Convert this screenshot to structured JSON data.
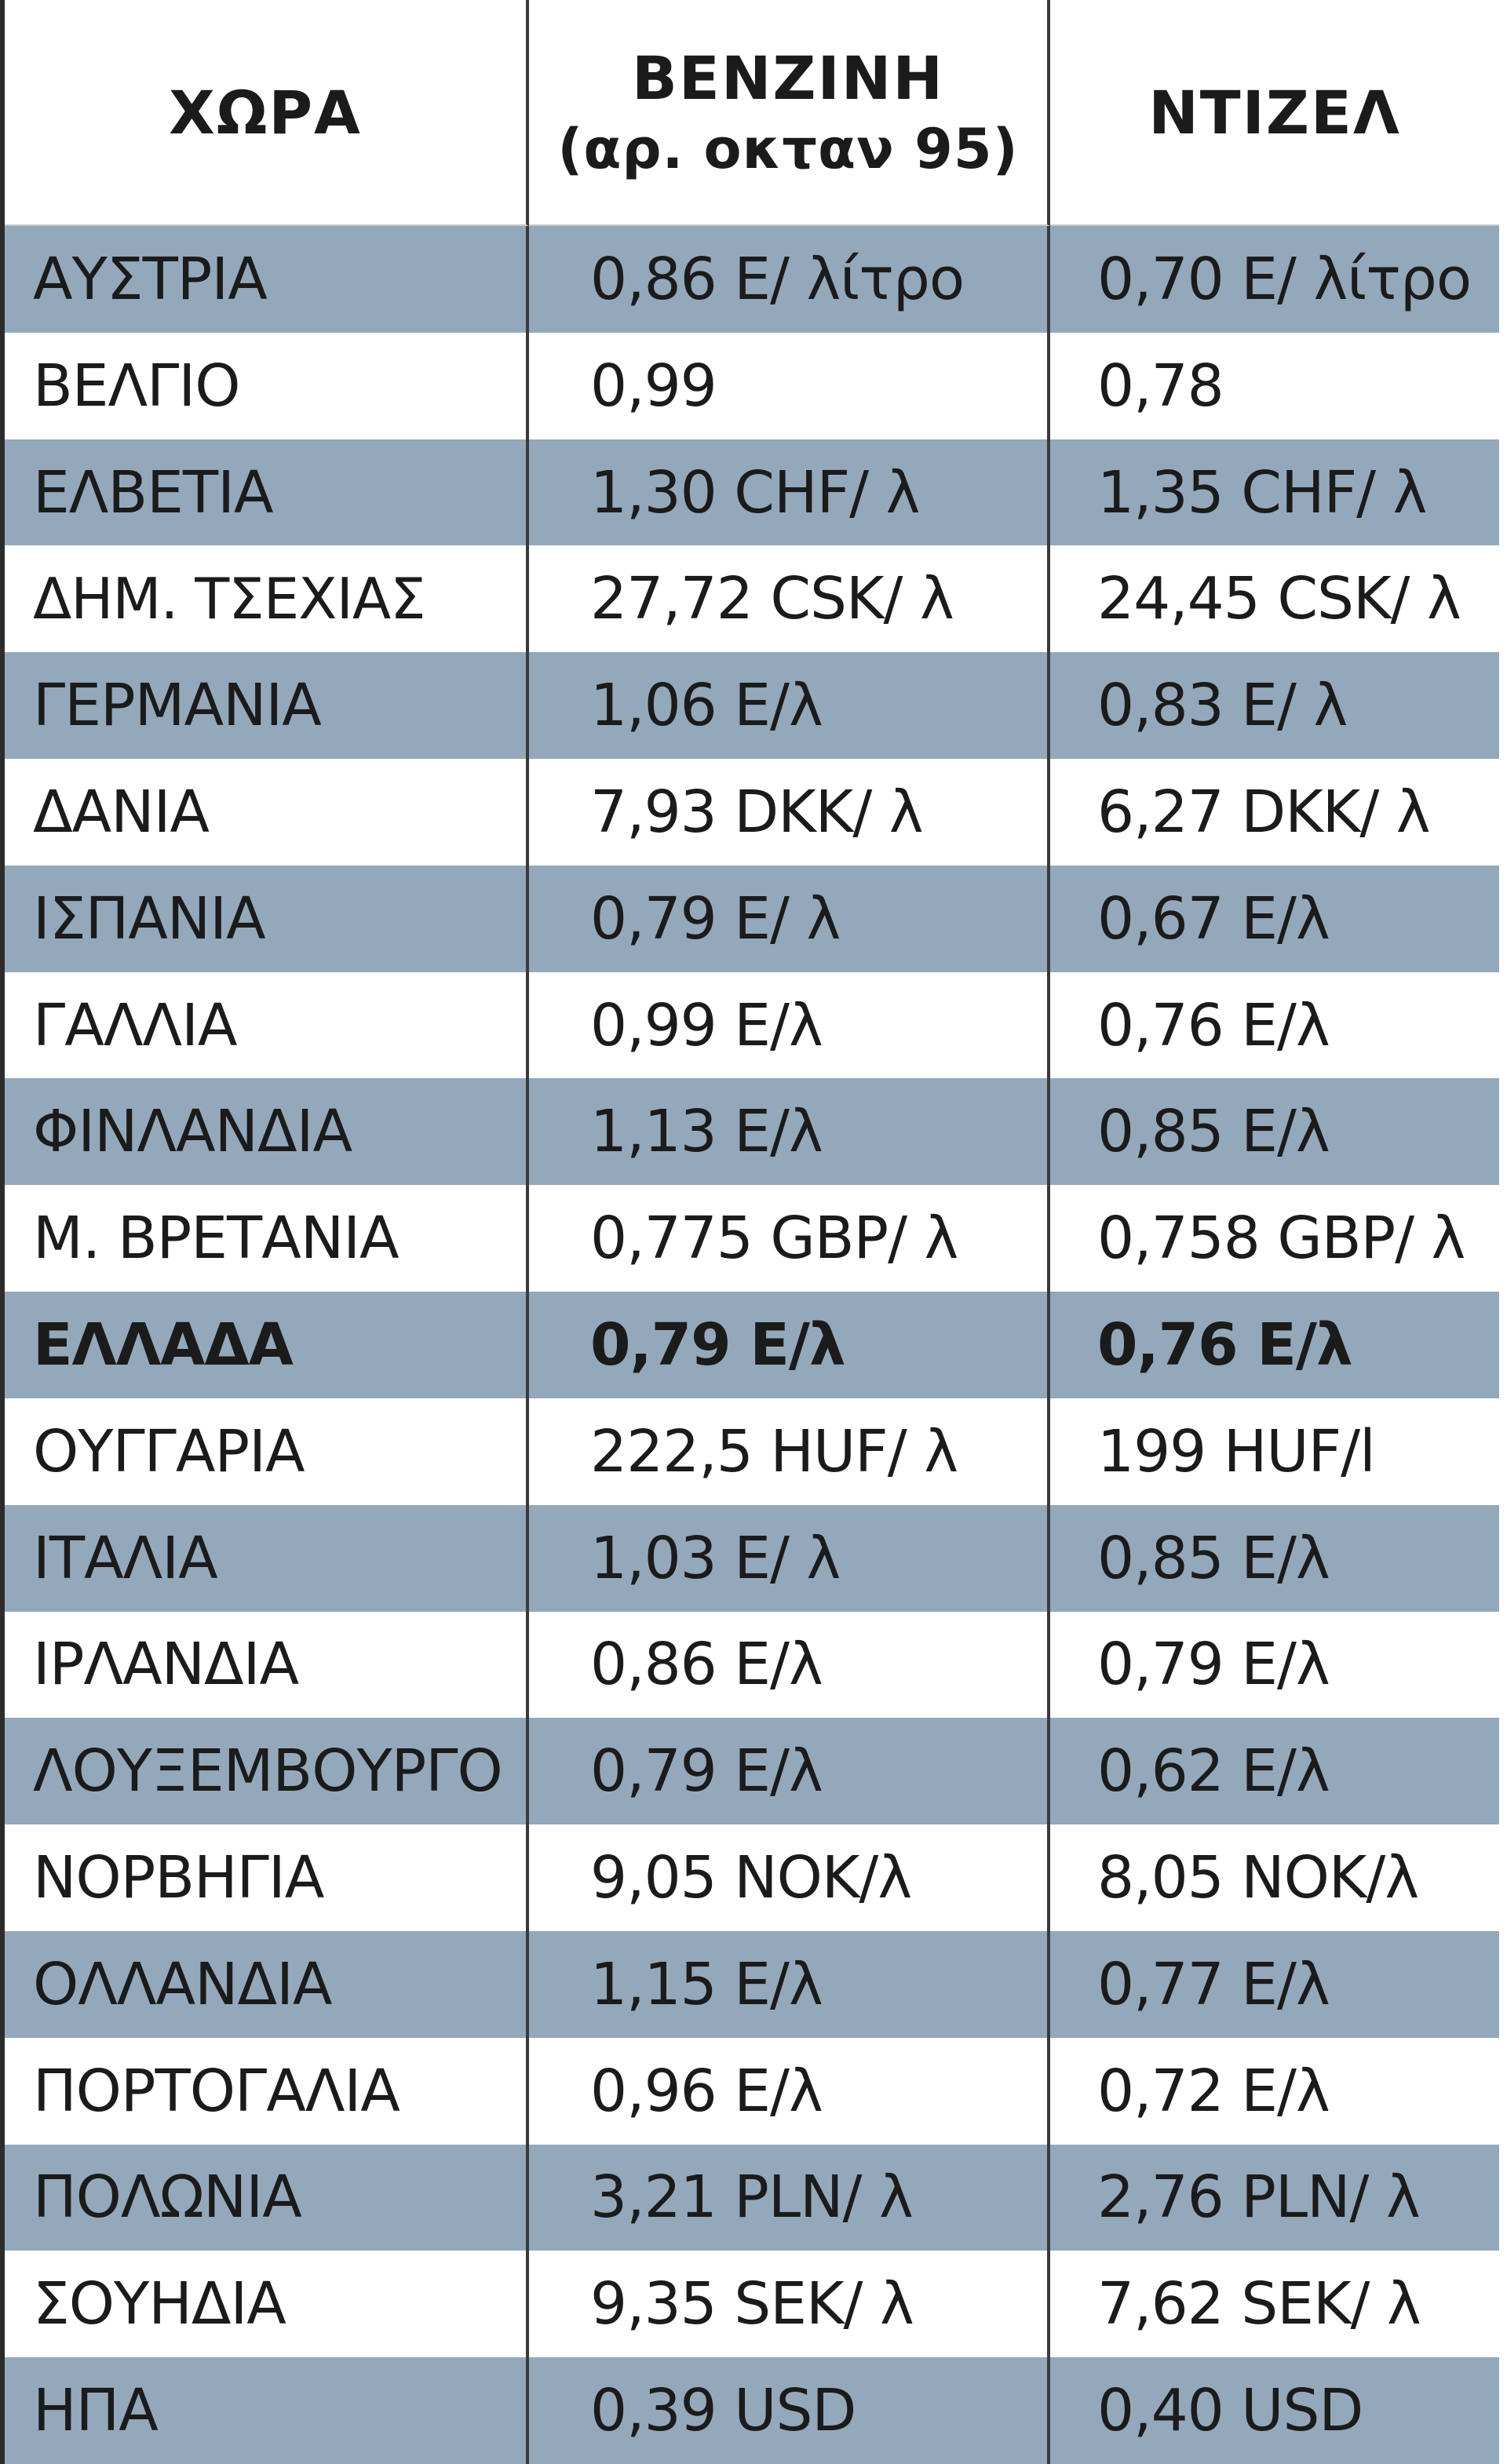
{
  "header": {
    "country": "ΧΩΡΑ",
    "petrol_line1": "ΒΕΝΖΙΝΗ",
    "petrol_line2": "(αρ. οκταν 95)",
    "diesel": "ΝΤΙΖΕΛ"
  },
  "rows": [
    {
      "country": "ΑΥΣΤΡΙΑ",
      "petrol": "0,86  E/ λίτρο",
      "diesel": "0,70  E/ λίτρο",
      "shaded": true
    },
    {
      "country": "ΒΕΛΓΙΟ",
      "petrol": "0,99",
      "diesel": "0,78",
      "shaded": false
    },
    {
      "country": "ΕΛΒΕΤΙΑ",
      "petrol": "1,30 CHF/  λ",
      "diesel": "1,35 CHF/  λ",
      "shaded": true
    },
    {
      "country": "ΔΗΜ. ΤΣΕΧΙΑΣ",
      "petrol": "27,72 CSK/  λ",
      "diesel": "24,45 CSK/  λ",
      "shaded": false
    },
    {
      "country": "ΓΕΡΜΑΝΙΑ",
      "petrol": "1,06  E/λ",
      "diesel": "0,83  E/  λ",
      "shaded": true
    },
    {
      "country": "ΔΑΝΙΑ",
      "petrol": "7,93 DKK/ λ",
      "diesel": "6,27 DKK/ λ",
      "shaded": false
    },
    {
      "country": "ΙΣΠΑΝΙΑ",
      "petrol": "0,79  E/  λ",
      "diesel": "0,67  E/λ",
      "shaded": true
    },
    {
      "country": "ΓΑΛΛΙΑ",
      "petrol": "0,99  E/λ",
      "diesel": "0,76  E/λ",
      "shaded": false
    },
    {
      "country": "ΦΙΝΛΑΝΔΙΑ",
      "petrol": "1,13  E/λ",
      "diesel": "0,85  E/λ",
      "shaded": true
    },
    {
      "country": "Μ. ΒΡΕΤΑΝΙΑ",
      "petrol": "0,775 GBP/  λ",
      "diesel": "0,758 GBP/  λ",
      "shaded": false
    },
    {
      "country": "ΕΛΛΑΔΑ",
      "petrol": "0,79 E/λ",
      "diesel": "0,76 E/λ",
      "shaded": true,
      "bold": true
    },
    {
      "country": "ΟΥΓΓΑΡΙΑ",
      "petrol": "222,5 HUF/  λ",
      "diesel": "199 HUF/l",
      "shaded": false
    },
    {
      "country": "ΙΤΑΛΙΑ",
      "petrol": "1,03 E/  λ",
      "diesel": "0,85  E/λ",
      "shaded": true
    },
    {
      "country": "ΙΡΛΑΝΔΙΑ",
      "petrol": "0,86  E/λ",
      "diesel": "0,79  E/λ",
      "shaded": false
    },
    {
      "country": "ΛΟΥΞΕΜΒΟΥΡΓΟ",
      "petrol": "0,79  E/λ",
      "diesel": "0,62  E/λ",
      "shaded": true
    },
    {
      "country": "ΝΟΡΒΗΓΙΑ",
      "petrol": "9,05  NOK/λ",
      "diesel": "8,05  NOK/λ",
      "shaded": false
    },
    {
      "country": "ΟΛΛΑΝΔΙΑ",
      "petrol": "1,15  E/λ",
      "diesel": "0,77  E/λ",
      "shaded": true
    },
    {
      "country": "ΠΟΡΤΟΓΑΛΙΑ",
      "petrol": "0,96  E/λ",
      "diesel": "0,72  E/λ",
      "shaded": false
    },
    {
      "country": "ΠΟΛΩΝΙΑ",
      "petrol": "3,21 PLN/  λ",
      "diesel": "2,76 PLN/  λ",
      "shaded": true
    },
    {
      "country": "ΣΟΥΗΔΙΑ",
      "petrol": "9,35 SEK/   λ",
      "diesel": "7,62 SEK/   λ",
      "shaded": false
    },
    {
      "country": "ΗΠΑ",
      "petrol": "0,39 USD",
      "diesel": "0,40 USD",
      "shaded": true
    }
  ]
}
